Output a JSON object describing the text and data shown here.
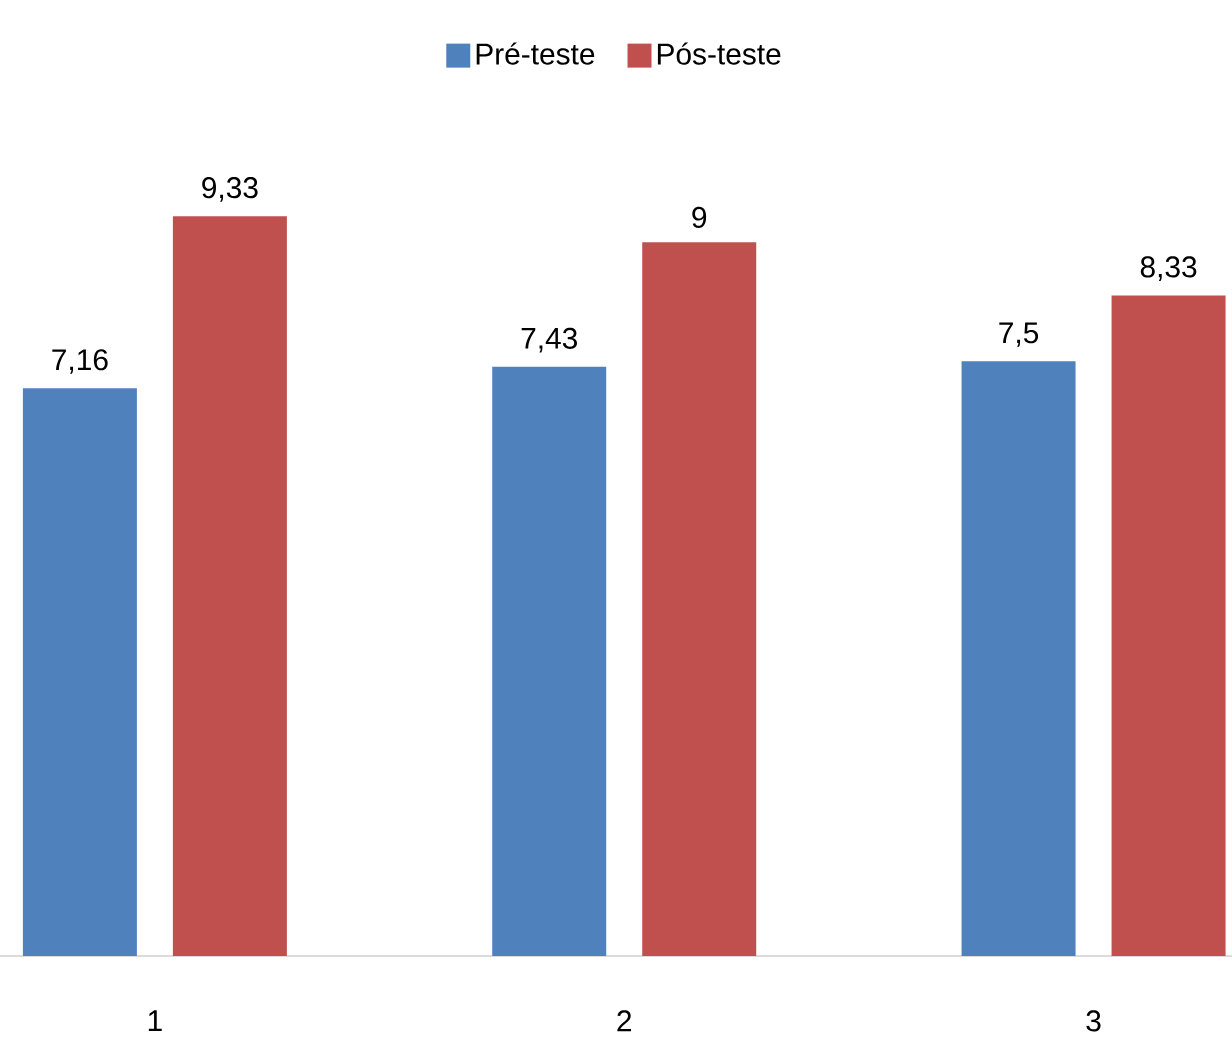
{
  "chart_data": {
    "type": "bar",
    "categories": [
      "1",
      "2",
      "3"
    ],
    "series": [
      {
        "name": "Pré-teste",
        "color": "#4f81bd",
        "values": [
          7.16,
          7.43,
          7.5
        ],
        "value_labels": [
          "7,16",
          "7,43",
          "7,5"
        ]
      },
      {
        "name": "Pós-teste",
        "color": "#c0504d",
        "values": [
          9.33,
          9,
          8.33
        ],
        "value_labels": [
          "9,33",
          "9",
          "8,33"
        ]
      }
    ],
    "legend": "top"
  }
}
